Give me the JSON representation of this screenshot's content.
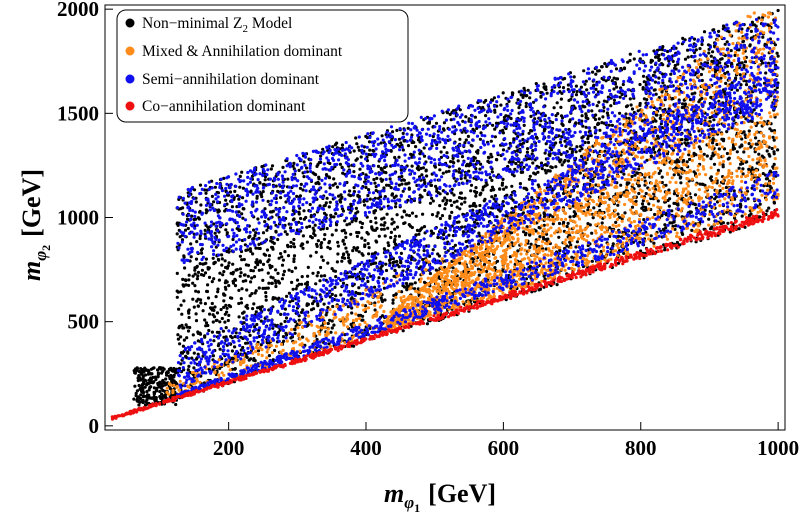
{
  "chart_data": {
    "type": "scatter",
    "title": "",
    "xlabel": {
      "symbol": "m",
      "sub_symbol": "φ",
      "sub_index": "1",
      "unit": "[GeV]"
    },
    "ylabel": {
      "symbol": "m",
      "sub_symbol": "φ",
      "sub_index": "2",
      "unit": "[GeV]"
    },
    "xlim": [
      20,
      1010
    ],
    "ylim": [
      -20,
      2020
    ],
    "xticks": [
      200,
      400,
      600,
      800,
      1000
    ],
    "yticks": [
      0,
      500,
      1000,
      1500,
      2000
    ],
    "grid": false,
    "legend_position": "top-left",
    "series": [
      {
        "name_parts": {
          "pre": "Non−minimal Z",
          "sub": "2",
          "post": " Model"
        },
        "color": "#000000"
      },
      {
        "name": "Mixed & Annihilation dominant",
        "color": "#ff8c1a"
      },
      {
        "name": "Semi−annihilation dominant",
        "color": "#1010ee"
      },
      {
        "name": "Co−annihilation dominant",
        "color": "#ee1010"
      }
    ],
    "regions": {
      "black_main": {
        "x": [
          125,
          1000
        ],
        "y_lower_slope": 1.0,
        "y_upper": "x + 1000 (max 2000)",
        "low_mass_box": {
          "x": [
            62,
            125
          ],
          "y": [
            100,
            280
          ]
        }
      },
      "red_edge": {
        "x": [
          30,
          1000
        ],
        "y": "≈ x to 1.04x"
      },
      "orange_wedge": {
        "x": [
          430,
          1000
        ],
        "y": "1.05x to ≈ 2x"
      },
      "blue_bands": {
        "x": [
          125,
          1000
        ],
        "y": "1.1x to x + 1000"
      }
    }
  }
}
